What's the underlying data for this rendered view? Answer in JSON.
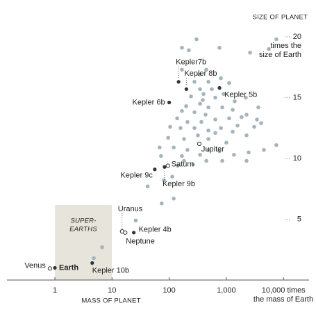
{
  "chart_data": {
    "type": "scatter",
    "x_label": "MASS OF PLANET",
    "y_label": "SIZE OF PLANET",
    "x_note": "the mass of Earth",
    "y_note": [
      "times the",
      "size of Earth"
    ],
    "region_label": [
      "SUPER-",
      "EARTHS"
    ],
    "log_x": true,
    "xlim": [
      0.145,
      28000
    ],
    "ylim": [
      0,
      22
    ],
    "xticks": [
      1,
      10,
      100,
      {
        "value": 1000,
        "label": "1,000"
      },
      {
        "value": 10000,
        "label": "10,000 times"
      }
    ],
    "yticks": [
      5,
      10,
      15,
      20
    ],
    "series": [
      {
        "color": "#a3b4bc",
        "x": [
          7500,
          301,
          2600,
          167,
          221,
          758,
          5530,
          446,
          167,
          337,
          277,
          485,
          802,
          1120,
          557,
          347,
          398,
          241,
          641,
          897,
          1400,
          2190,
          347,
          198,
          485,
          848,
          1290,
          167,
          277,
          433,
          2260,
          3630,
          3430,
          3070,
          4060,
          1850,
          1120,
          641,
          366,
          209,
          104,
          158,
          277,
          485,
          802,
          1290,
          2260,
          96,
          182,
          485,
          1000,
          120,
          209,
          485,
          758,
          68,
          167,
          347,
          1360,
          2450,
          4540,
          7500,
          848,
          182,
          141,
          262,
          446,
          113,
          81,
          42,
          120,
          74,
          26,
          6.7,
          4.8,
          2260,
          641,
          1570,
          318,
          138,
          387,
          72
        ],
        "values": [
          19.8,
          19.8,
          18.7,
          19.1,
          18.9,
          19.1,
          19.0,
          17.3,
          17.3,
          16.9,
          16.3,
          16.3,
          16.6,
          16.2,
          15.7,
          15.7,
          15.3,
          15.1,
          15.0,
          15.3,
          14.7,
          15.0,
          14.5,
          14.3,
          14.2,
          14.2,
          14.0,
          13.9,
          13.8,
          13.6,
          13.6,
          14.2,
          13.2,
          12.6,
          12.9,
          13.4,
          13.3,
          13.2,
          13.0,
          13.0,
          12.6,
          12.5,
          12.5,
          12.3,
          12.5,
          12.2,
          11.9,
          11.7,
          11.6,
          11.6,
          11.3,
          10.9,
          10.7,
          10.7,
          10.6,
          10.9,
          10.2,
          10.3,
          10.3,
          10.5,
          10.7,
          11.1,
          9.8,
          9.8,
          9.4,
          9.5,
          9.8,
          8.5,
          8.2,
          7.7,
          6.7,
          6.3,
          4.9,
          2.7,
          1.8,
          9.8,
          12.1,
          12.7,
          11.9,
          13.3,
          14.8,
          10.2
        ]
      },
      {
        "color": "#333333",
        "labels": [
          "Venus",
          "Earth",
          "Kepler 10b",
          "Uranus",
          "Neptune",
          "Kepler 4b",
          "Saturn",
          "Kepler 9c",
          "Kepler 9b",
          "Jupiter",
          "Kepler 6b",
          "Kepler 8b",
          "Kepler7b",
          "Kepler 5b"
        ],
        "hollow": [
          true,
          false,
          false,
          true,
          true,
          false,
          true,
          false,
          false,
          true,
          false,
          false,
          false,
          false
        ],
        "x": [
          0.82,
          1,
          4.5,
          15,
          17,
          24,
          95,
          56,
          83,
          336,
          100,
          200,
          146,
          760
        ],
        "values": [
          0.95,
          1,
          1.4,
          4.0,
          3.9,
          3.9,
          9.4,
          9.1,
          9.3,
          11.2,
          14.6,
          15.7,
          16.3,
          15.8
        ]
      }
    ]
  }
}
